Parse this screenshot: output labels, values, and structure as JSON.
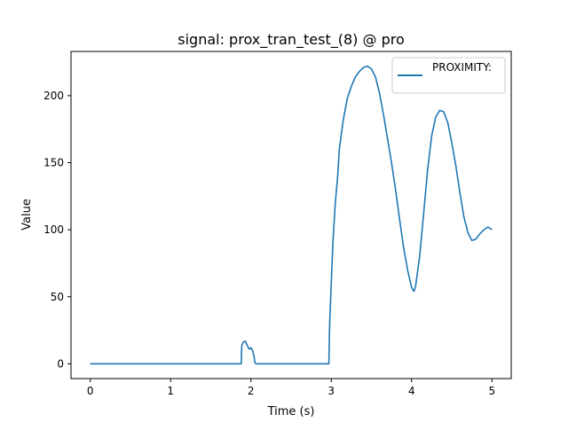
{
  "chart_data": {
    "type": "line",
    "title": "signal: prox_tran_test_(8) @ pro",
    "xlabel": "Time (s)",
    "ylabel": "Value",
    "xlim": [
      -0.24,
      5.24
    ],
    "ylim": [
      -11,
      233
    ],
    "xticks": [
      0,
      1,
      2,
      3,
      4,
      5
    ],
    "yticks": [
      0,
      50,
      100,
      150,
      200
    ],
    "grid": false,
    "legend_position": "upper-right",
    "series": [
      {
        "name": "PROXIMITY:",
        "color": "#1f77b4",
        "x": [
          0.0,
          0.5,
          1.0,
          1.5,
          1.88,
          1.885,
          1.9,
          1.93,
          1.96,
          1.98,
          2.0,
          2.02,
          2.04,
          2.05,
          2.06,
          2.07,
          2.5,
          2.97,
          2.98,
          3.0,
          3.02,
          3.05,
          3.08,
          3.1,
          3.15,
          3.2,
          3.25,
          3.3,
          3.35,
          3.4,
          3.45,
          3.5,
          3.55,
          3.6,
          3.65,
          3.7,
          3.75,
          3.8,
          3.85,
          3.9,
          3.95,
          4.0,
          4.03,
          4.05,
          4.1,
          4.15,
          4.2,
          4.25,
          4.3,
          4.35,
          4.4,
          4.45,
          4.5,
          4.55,
          4.6,
          4.65,
          4.7,
          4.75,
          4.8,
          4.85,
          4.9,
          4.95,
          5.0
        ],
        "y": [
          0,
          0,
          0,
          0,
          0,
          13,
          16,
          17,
          13,
          11,
          12,
          10,
          5,
          1,
          0,
          0,
          0,
          0,
          30,
          60,
          90,
          120,
          140,
          160,
          182,
          198,
          207,
          214,
          218,
          221,
          222,
          220,
          214,
          202,
          186,
          168,
          150,
          130,
          108,
          87,
          70,
          57,
          54,
          58,
          80,
          112,
          145,
          170,
          184,
          189,
          188,
          180,
          165,
          148,
          128,
          110,
          98,
          92,
          93,
          97,
          100,
          102,
          100
        ]
      }
    ]
  }
}
